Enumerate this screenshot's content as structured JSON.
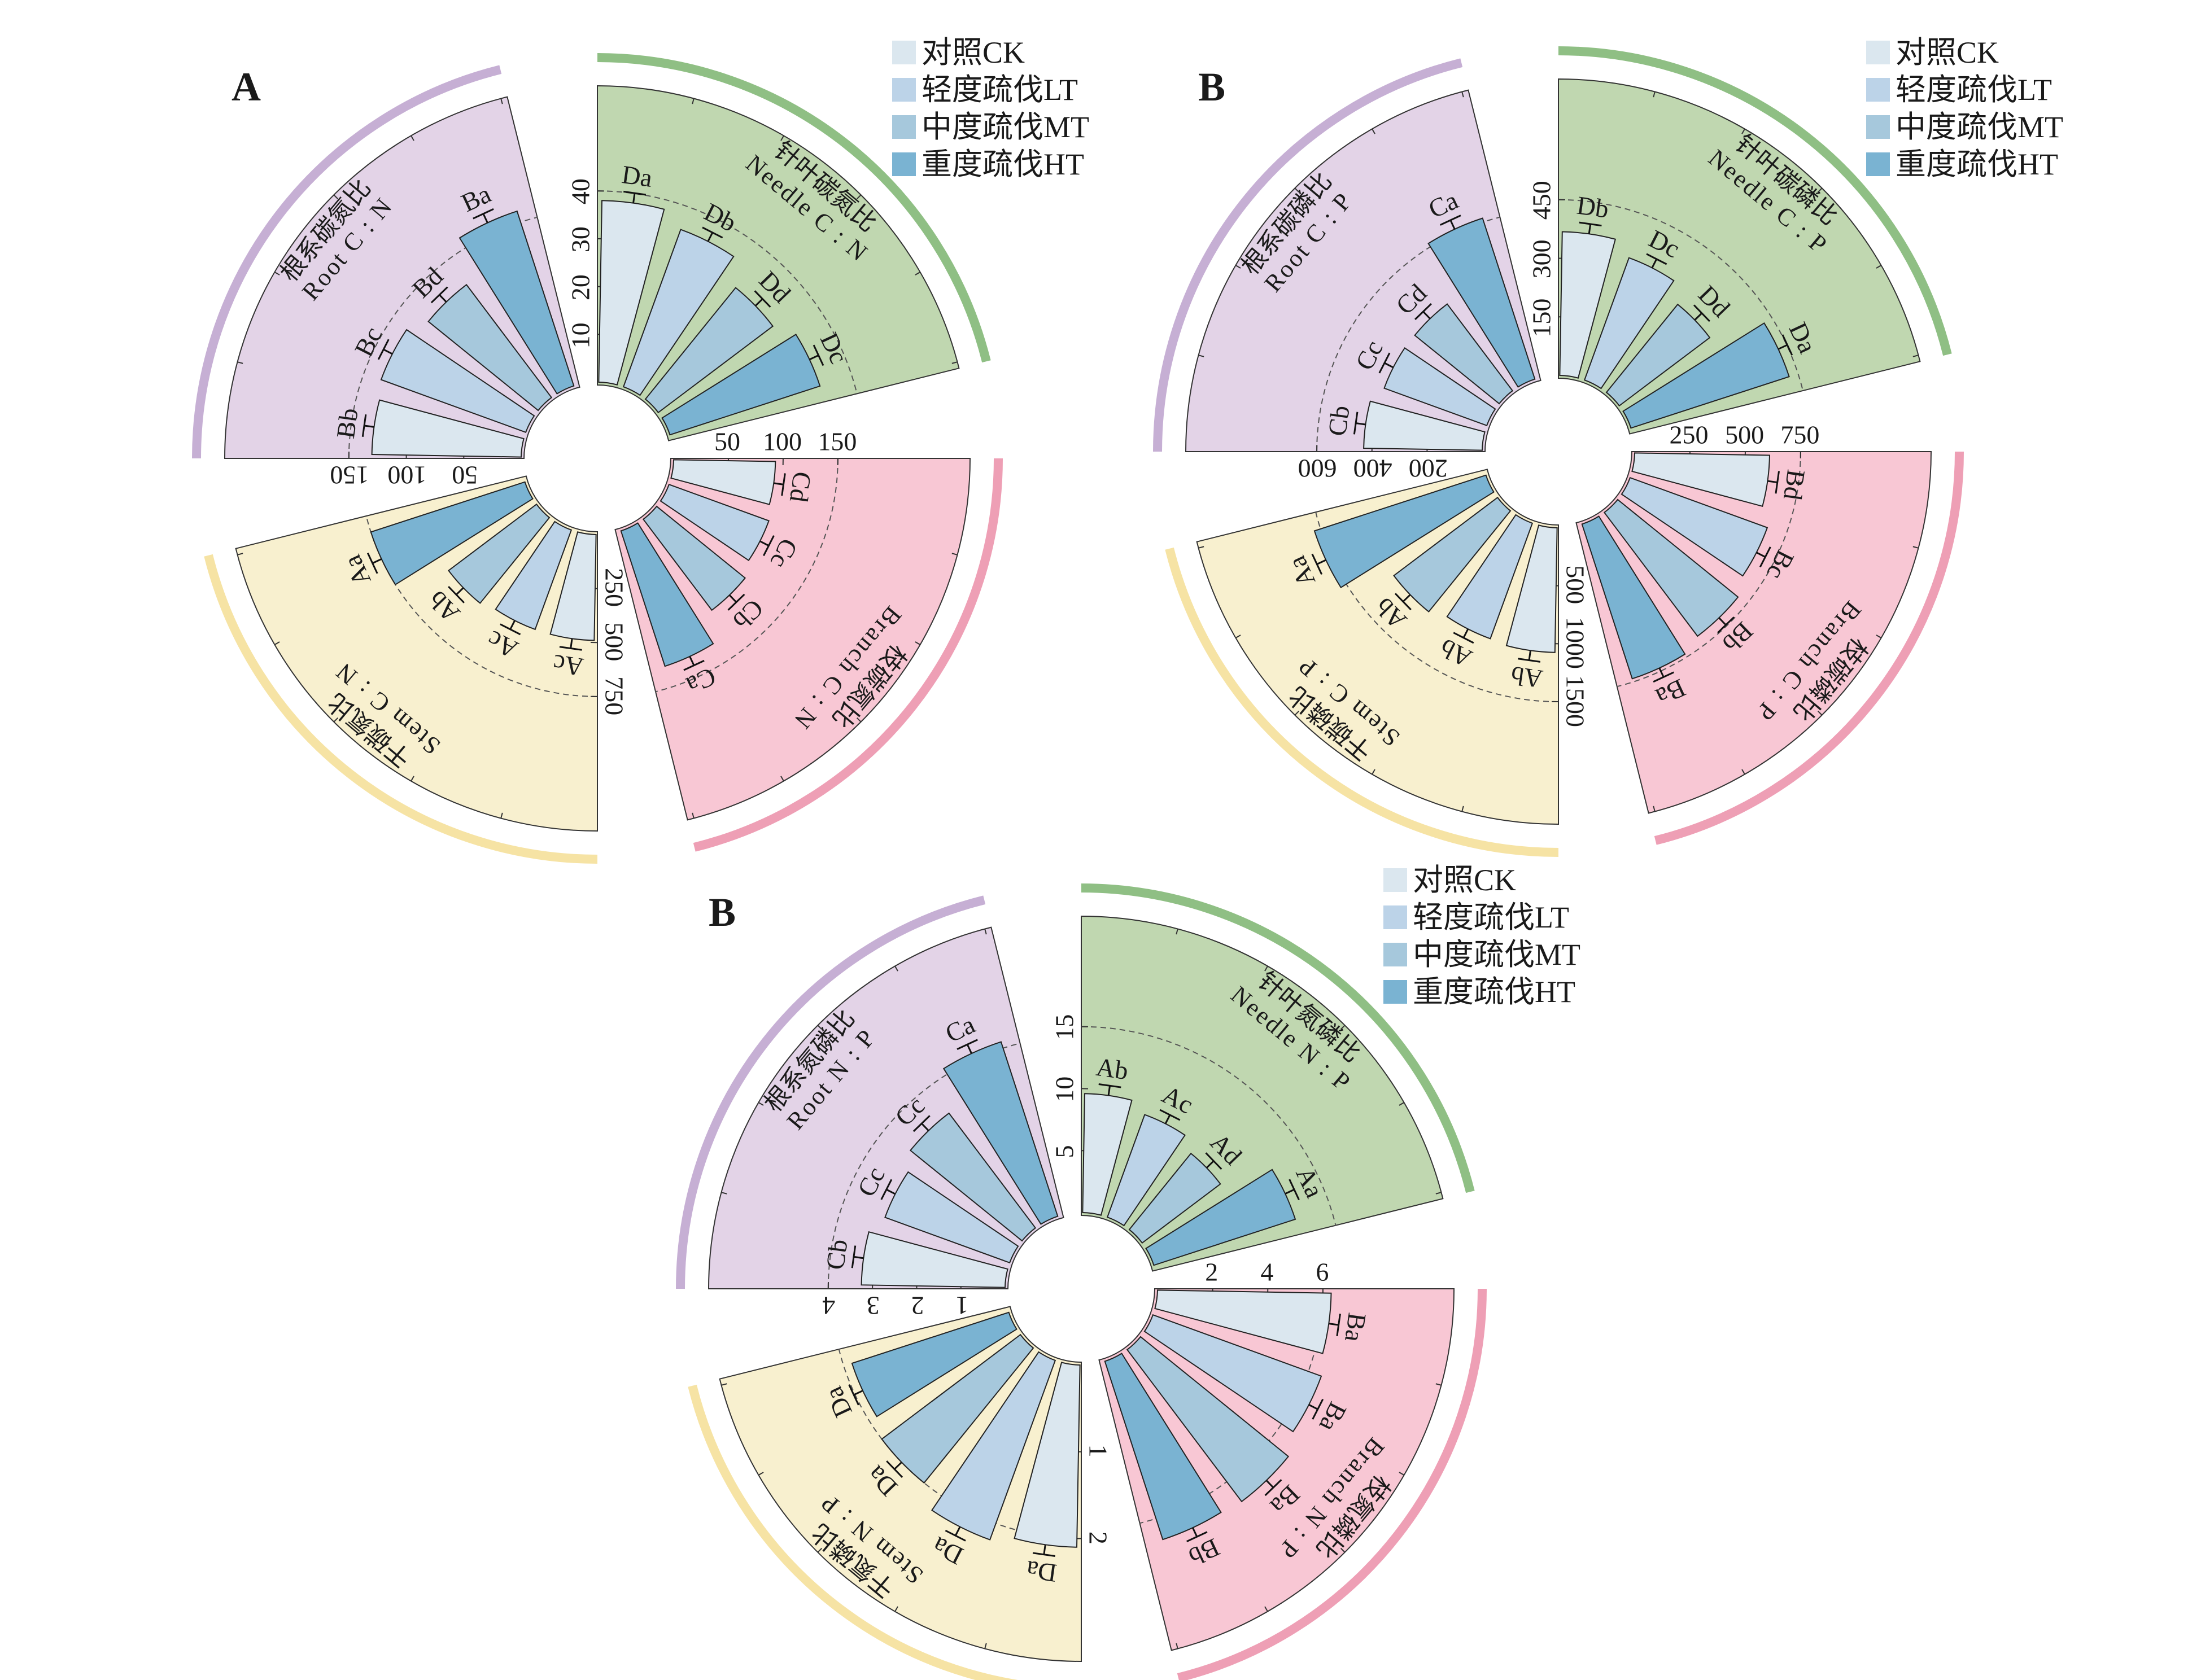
{
  "legend": {
    "items": [
      "对照CK",
      "轻度疏伐LT",
      "中度疏伐MT",
      "重度疏伐HT"
    ],
    "colors": [
      "#dbe7ef",
      "#bcd3e8",
      "#a6c8dc",
      "#7ab3d2"
    ]
  },
  "group_colors": {
    "needle": {
      "fill": "#c0d7b0",
      "arc": "#8fbf84"
    },
    "branch": {
      "fill": "#f8c7d4",
      "arc": "#ee9fb5"
    },
    "stem": {
      "fill": "#f8f0cf",
      "arc": "#f6e3a4"
    },
    "root": {
      "fill": "#e3d3e7",
      "arc": "#c6afd4"
    }
  },
  "chart_data": [
    {
      "panel_label": "A",
      "type": "polar-bar",
      "series_names": [
        "对照CK",
        "轻度疏伐LT",
        "中度疏伐MT",
        "重度疏伐HT"
      ],
      "groups": [
        {
          "key": "needle",
          "title_cn": "针叶碳氮比",
          "title_en": "Needle C : N",
          "ticks": [
            10,
            20,
            30,
            40
          ],
          "ylim": [
            0,
            49
          ],
          "values": [
            38,
            35,
            30,
            33
          ],
          "letters": [
            "Da",
            "Db",
            "Dd",
            "Dc"
          ]
        },
        {
          "key": "branch",
          "title_cn": "枝碳氮比",
          "title_en": "Branch C : N",
          "ticks": [
            50,
            100,
            150
          ],
          "ylim": [
            0,
            214
          ],
          "values": [
            93,
            97,
            104,
            130
          ],
          "letters": [
            "Cd",
            "Cc",
            "Cb",
            "Ca"
          ]
        },
        {
          "key": "stem",
          "title_cn": "干碳氮比",
          "title_en": "Stem C : N",
          "ticks": [
            250,
            500,
            750
          ],
          "ylim": [
            0,
            1085
          ],
          "values": [
            490,
            490,
            510,
            750
          ],
          "letters": [
            "Ac",
            "Ac",
            "Ab",
            "Aa"
          ]
        },
        {
          "key": "root",
          "title_cn": "根系碳氮比",
          "title_en": "Root C : N",
          "ticks": [
            50,
            100,
            150
          ],
          "ylim": [
            0,
            204
          ],
          "values": [
            130,
            134,
            123,
            160
          ],
          "letters": [
            "Bb",
            "Bc",
            "Bd",
            "Ba"
          ]
        }
      ]
    },
    {
      "panel_label": "B",
      "type": "polar-bar",
      "series_names": [
        "对照CK",
        "轻度疏伐LT",
        "中度疏伐MT",
        "重度疏伐HT"
      ],
      "groups": [
        {
          "key": "needle",
          "title_cn": "针叶碳磷比",
          "title_en": "Needle C : P",
          "ticks": [
            150,
            300,
            450
          ],
          "ylim": [
            0,
            600
          ],
          "values": [
            368,
            333,
            290,
            426
          ],
          "letters": [
            "Db",
            "Dc",
            "Dd",
            "Da"
          ]
        },
        {
          "key": "branch",
          "title_cn": "枝碳磷比",
          "title_en": "Branch C : P",
          "ticks": [
            250,
            500,
            750
          ],
          "ylim": [
            0,
            1059
          ],
          "values": [
            610,
            660,
            700,
            735
          ],
          "letters": [
            "Bd",
            "Bc",
            "Bb",
            "Ba"
          ]
        },
        {
          "key": "stem",
          "title_cn": "干碳磷比",
          "title_en": "Stem C : P",
          "ticks": [
            500,
            1000,
            1500
          ],
          "ylim": [
            0,
            2021
          ],
          "values": [
            1075,
            1060,
            1120,
            1555
          ],
          "letters": [
            "Ab",
            "Ab",
            "Ab",
            "Aa"
          ]
        },
        {
          "key": "root",
          "title_cn": "根系碳磷比",
          "title_en": "Root C : P",
          "ticks": [
            200,
            400,
            600
          ],
          "ylim": [
            0,
            850
          ],
          "values": [
            430,
            396,
            394,
            614
          ],
          "letters": [
            "Cb",
            "Cc",
            "Cd",
            "Ca"
          ]
        }
      ]
    },
    {
      "panel_label": "B",
      "type": "polar-bar",
      "series_names": [
        "对照CK",
        "轻度疏伐LT",
        "中度疏伐MT",
        "重度疏伐HT"
      ],
      "groups": [
        {
          "key": "needle",
          "title_cn": "针叶氮磷比",
          "title_en": "Needle N : P",
          "ticks": [
            5,
            10,
            15
          ],
          "ylim": [
            0,
            18.9
          ],
          "values": [
            9.6,
            8.8,
            7.9,
            12.0
          ],
          "letters": [
            "Ab",
            "Ac",
            "Ad",
            "Aa"
          ]
        },
        {
          "key": "branch",
          "title_cn": "枝氮磷比",
          "title_en": "Branch N : P",
          "ticks": [
            2,
            4,
            6
          ],
          "ylim": [
            0,
            8.5
          ],
          "values": [
            6.3,
            6.5,
            6.9,
            6.8
          ],
          "letters": [
            "Ba",
            "Ba",
            "Ba",
            "Bb"
          ]
        },
        {
          "key": "stem",
          "title_cn": "干氮磷比",
          "title_en": "Stem N : P",
          "ticks": [
            1,
            2
          ],
          "ylim": [
            0,
            2.7
          ],
          "values": [
            2.1,
            2.2,
            2.0,
            1.9
          ],
          "letters": [
            "Da",
            "Da",
            "Da",
            "Da"
          ]
        },
        {
          "key": "root",
          "title_cn": "根系氮磷比",
          "title_en": "Root N : P",
          "ticks": [
            1,
            2,
            3,
            4
          ],
          "ylim": [
            0,
            5.3
          ],
          "values": [
            3.25,
            3.0,
            3.25,
            4.15
          ],
          "letters": [
            "Cb",
            "Cc",
            "Cc",
            "Ca"
          ]
        }
      ]
    }
  ]
}
